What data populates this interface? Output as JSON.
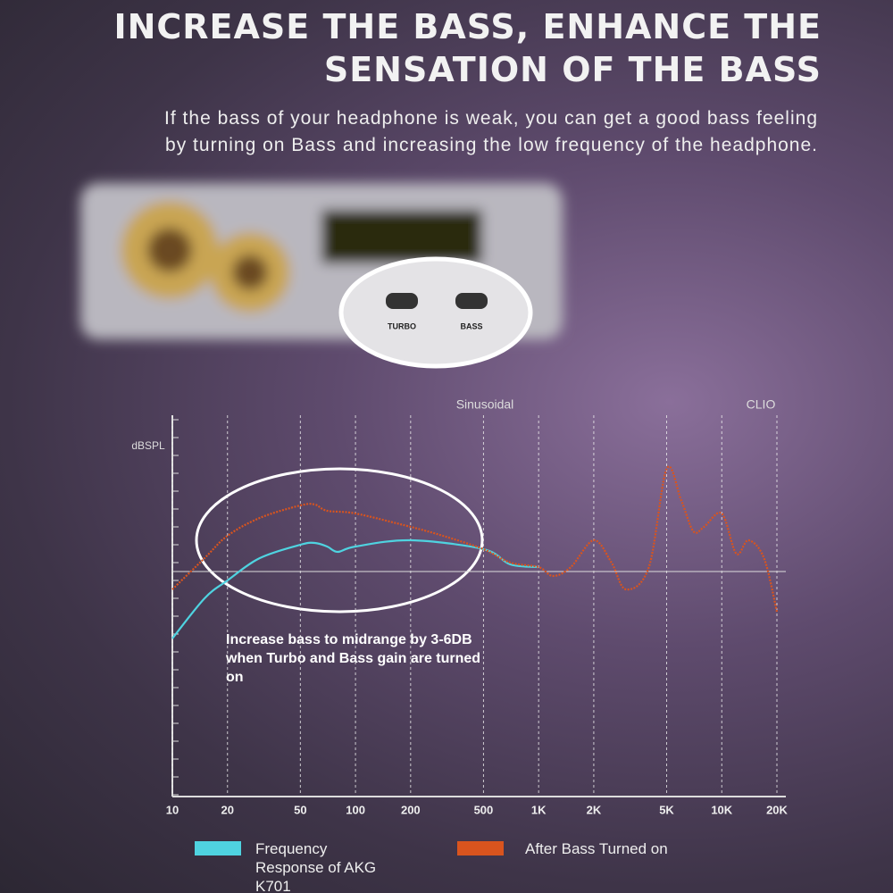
{
  "header": {
    "title": "INCREASE THE BASS, ENHANCE THE SENSATION OF THE BASS",
    "subtitle": "If the bass of your headphone is weak, you can get a good bass feeling by turning on Bass and increasing the low frequency of the headphone."
  },
  "device": {
    "switch_labels": [
      "TURBO",
      "BASS"
    ]
  },
  "chart_data": {
    "type": "line",
    "title": "Sinusoidal",
    "source": "CLIO",
    "ylabel": "dBSPL",
    "annotation": "Increase bass to midrange by 3-6DB when Turbo and Bass gain are turned on",
    "xscale": "log",
    "xlim": [
      10,
      20000
    ],
    "xticks": [
      10,
      20,
      50,
      100,
      200,
      500,
      {
        "value": 1000,
        "label": "1K"
      },
      {
        "value": 2000,
        "label": "2K"
      },
      {
        "value": 5000,
        "label": "5K"
      },
      {
        "value": 10000,
        "label": "10K"
      },
      {
        "value": 20000,
        "label": "20K"
      }
    ],
    "ylim": [
      -25,
      17.5
    ],
    "reference_line": 0,
    "grid": true,
    "series": [
      {
        "name": "Frequency Response of AKG K701",
        "color": "#4fd3e0",
        "style": "solid",
        "x": [
          10,
          15,
          20,
          30,
          50,
          60,
          70,
          80,
          100,
          200,
          500,
          700,
          1000
        ],
        "values": [
          -7.5,
          -3,
          -1,
          1.5,
          3,
          3.2,
          2.8,
          2.2,
          2.8,
          3.5,
          2.5,
          0.8,
          0.5
        ]
      },
      {
        "name": "After Bass Turned on",
        "color": "#d9541e",
        "style": "dotted",
        "x": [
          10,
          15,
          20,
          30,
          50,
          60,
          70,
          100,
          200,
          300,
          500,
          700,
          1000,
          1200,
          1500,
          2000,
          2500,
          3000,
          4000,
          5000,
          6000,
          7000,
          8000,
          10000,
          12000,
          14000,
          17000,
          20000
        ],
        "values": [
          -2,
          1.5,
          4,
          6,
          7.4,
          7.5,
          6.8,
          6.5,
          5,
          4,
          2.5,
          1,
          0.5,
          -0.5,
          0.5,
          3.5,
          1,
          -2,
          0.5,
          11.5,
          8,
          4.5,
          5,
          6.5,
          2,
          3.5,
          1.5,
          -4.5
        ]
      }
    ]
  }
}
